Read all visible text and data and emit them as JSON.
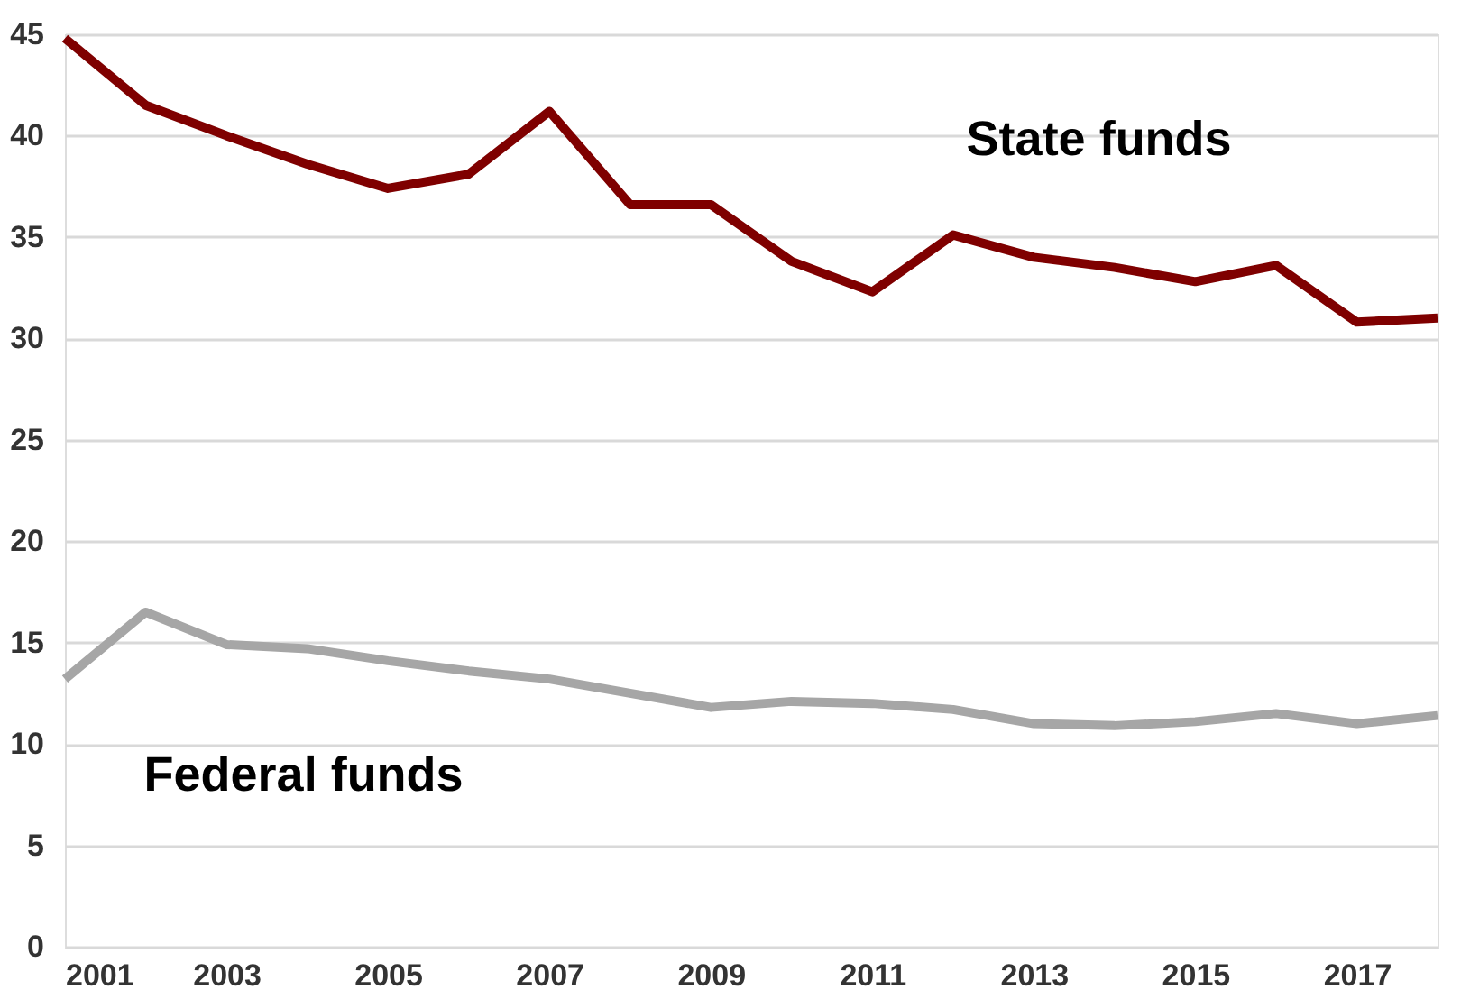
{
  "chart_data": {
    "type": "line",
    "x": [
      2001,
      2002,
      2003,
      2004,
      2005,
      2006,
      2007,
      2008,
      2009,
      2010,
      2011,
      2012,
      2013,
      2014,
      2015,
      2016,
      2017,
      2018
    ],
    "series": [
      {
        "name": "State funds",
        "color": "#7f0000",
        "values": [
          44.8,
          41.5,
          40.0,
          38.6,
          37.4,
          38.1,
          41.2,
          36.6,
          36.6,
          33.8,
          32.3,
          35.1,
          34.0,
          33.5,
          32.8,
          33.6,
          30.8,
          31.0
        ]
      },
      {
        "name": "Federal funds",
        "color": "#a6a6a6",
        "values": [
          13.2,
          16.5,
          14.9,
          14.7,
          14.1,
          13.6,
          13.2,
          12.5,
          11.8,
          12.1,
          12.0,
          11.7,
          11.0,
          10.9,
          11.1,
          11.5,
          11.0,
          11.4
        ]
      }
    ],
    "xlim": [
      2001,
      2018
    ],
    "xticks": [
      2001,
      2003,
      2005,
      2007,
      2009,
      2011,
      2013,
      2015,
      2017
    ],
    "ylim": [
      0,
      45
    ],
    "yticks": [
      0,
      5,
      10,
      15,
      20,
      25,
      30,
      35,
      40,
      45
    ],
    "grid": "y",
    "legend": false,
    "marker": "none",
    "line_style": "solid"
  }
}
